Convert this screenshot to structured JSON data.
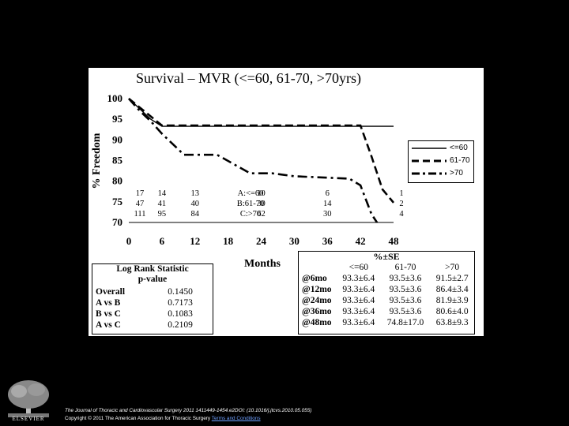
{
  "chart_data": {
    "type": "line",
    "title": "Survival – MVR (<=60, 61-70, >70yrs)",
    "xlabel": "Months",
    "ylabel": "% Freedom",
    "xlim": [
      0,
      48
    ],
    "ylim": [
      70,
      100
    ],
    "x_ticks": [
      "0",
      "6",
      "12",
      "18",
      "24",
      "30",
      "36",
      "42",
      "48"
    ],
    "y_ticks": [
      "100",
      "95",
      "90",
      "85",
      "80",
      "75",
      "70"
    ],
    "legend_position": "right",
    "series": [
      {
        "name": "<=60",
        "style": "solid",
        "points": [
          [
            0,
            100
          ],
          [
            2,
            97.5
          ],
          [
            4,
            95
          ],
          [
            6,
            93.3
          ],
          [
            42,
            93.3
          ],
          [
            48,
            93.3
          ]
        ]
      },
      {
        "name": "61-70",
        "style": "dashed",
        "points": [
          [
            0,
            100
          ],
          [
            6,
            93.5
          ],
          [
            42,
            93.5
          ],
          [
            44,
            86
          ],
          [
            46,
            78
          ],
          [
            48,
            74.8
          ]
        ]
      },
      {
        "name": ">70",
        "style": "dashdot",
        "points": [
          [
            0,
            100
          ],
          [
            2,
            97
          ],
          [
            4,
            94.5
          ],
          [
            6,
            91.5
          ],
          [
            10,
            86.4
          ],
          [
            16,
            86.4
          ],
          [
            22,
            81.9
          ],
          [
            26,
            81.9
          ],
          [
            30,
            81.2
          ],
          [
            40,
            80.6
          ],
          [
            42,
            79
          ],
          [
            44,
            72
          ],
          [
            46,
            68
          ],
          [
            48,
            63.8
          ]
        ]
      }
    ],
    "at_risk": {
      "x": [
        0,
        6,
        12,
        24,
        36,
        48
      ],
      "rows": [
        {
          "values": [
            "17",
            "14",
            "13",
            "10",
            "6",
            "1"
          ],
          "label": "A:<=60"
        },
        {
          "values": [
            "47",
            "41",
            "40",
            "30",
            "14",
            "2"
          ],
          "label": "B:61-70"
        },
        {
          "values": [
            "111",
            "95",
            "84",
            "62",
            "30",
            "4"
          ],
          "label": "C:>70"
        }
      ]
    },
    "log_rank": {
      "title": "Log Rank Statistic",
      "subtitle": "p-value",
      "rows": [
        {
          "label": "Overall",
          "value": "0.1450"
        },
        {
          "label": "A vs B",
          "value": "0.7173"
        },
        {
          "label": "B vs C",
          "value": "0.1083"
        },
        {
          "label": "A vs C",
          "value": "0.2109"
        }
      ]
    },
    "se_table": {
      "title": "%±SE",
      "columns": [
        "<=60",
        "61-70",
        ">70"
      ],
      "rows": [
        {
          "label": "@6mo",
          "values": [
            "93.3±6.4",
            "93.5±3.6",
            "91.5±2.7"
          ]
        },
        {
          "label": "@12mo",
          "values": [
            "93.3±6.4",
            "93.5±3.6",
            "86.4±3.4"
          ]
        },
        {
          "label": "@24mo",
          "values": [
            "93.3±6.4",
            "93.5±3.6",
            "81.9±3.9"
          ]
        },
        {
          "label": "@36mo",
          "values": [
            "93.3±6.4",
            "93.5±3.6",
            "80.6±4.0"
          ]
        },
        {
          "label": "@48mo",
          "values": [
            "93.3±6.4",
            "74.8±17.0",
            "63.8±9.3"
          ]
        }
      ]
    }
  },
  "footer": {
    "citation": "The Journal of Thoracic and Cardiovascular Surgery 2011 1411449-1454.e2DOI: (10.1016/j.jtcvs.2010.05.055)",
    "copyright": "Copyright © 2011 The American Association for Thoracic Surgery",
    "link": "Terms and Conditions"
  },
  "logo": {
    "text": "ELSEVIER",
    "icon": "elsevier-tree-icon"
  }
}
